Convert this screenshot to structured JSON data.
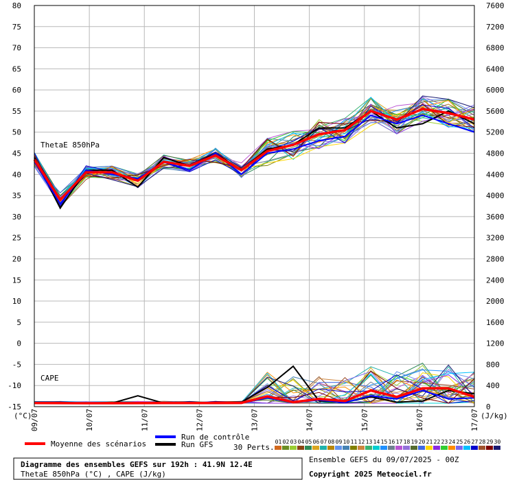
{
  "chart_data": {
    "type": "line",
    "title": "Diagramme des ensembles GEFS sur 192h : 41.9N 12.4E",
    "subtitle": "ThetaE 850hPa (°C) , CAPE (J/kg)",
    "left_axis_unit": "(°C)",
    "right_axis_unit": "(J/kg)",
    "left_ticks": [
      "80",
      "75",
      "70",
      "65",
      "60",
      "55",
      "50",
      "45",
      "40",
      "35",
      "30",
      "25",
      "20",
      "15",
      "10",
      "5",
      "0",
      "-5",
      "-10",
      "-15"
    ],
    "right_ticks": [
      "7600",
      "7200",
      "6800",
      "6400",
      "6000",
      "5600",
      "5200",
      "4800",
      "4400",
      "4000",
      "3600",
      "3200",
      "2800",
      "2400",
      "2000",
      "1600",
      "1200",
      "800",
      "400",
      "0"
    ],
    "x_labels": [
      "09/07",
      "10/07",
      "11/07",
      "12/07",
      "13/07",
      "14/07",
      "15/07",
      "16/07",
      "17/07"
    ],
    "ylim_theta": [
      -15,
      80
    ],
    "ylim_cape": [
      0,
      7600
    ],
    "grid": true,
    "panel_labels": {
      "theta": "ThetaE 850hPa",
      "cape": "CAPE"
    },
    "series": [
      {
        "name": "Moyenne des scénarios",
        "color": "#ff0000",
        "theta": [
          43.5,
          34,
          40.5,
          40.5,
          38.5,
          43,
          42,
          44.5,
          41,
          45.5,
          47,
          49.5,
          50.5,
          55,
          53,
          55.5,
          54.5,
          53
        ],
        "cape": [
          2,
          1,
          0,
          0,
          1,
          2,
          3,
          3,
          5,
          130,
          20,
          80,
          40,
          240,
          120,
          280,
          280,
          120
        ]
      },
      {
        "name": "Run de contrôle",
        "color": "#0000ff",
        "theta": [
          43,
          33,
          41,
          40,
          39,
          43,
          41,
          45,
          40,
          45,
          46,
          48,
          49,
          54,
          52,
          54,
          52,
          50
        ],
        "cape": [
          1,
          0,
          0,
          0,
          0,
          1,
          2,
          1,
          4,
          100,
          10,
          60,
          10,
          140,
          80,
          240,
          80,
          100
        ]
      },
      {
        "name": "Run GFS",
        "color": "#000000",
        "theta": [
          44,
          32,
          41,
          41,
          37,
          44,
          42,
          45,
          41,
          46,
          47,
          51,
          51,
          55,
          51,
          52,
          55,
          52
        ],
        "cape": [
          1,
          0,
          0,
          0,
          140,
          1,
          2,
          1,
          20,
          300,
          700,
          40,
          20,
          120,
          20,
          40,
          240,
          180
        ]
      }
    ],
    "legend": {
      "members_label": "30 Perts.",
      "members": [
        "01",
        "02",
        "03",
        "04",
        "05",
        "06",
        "07",
        "08",
        "09",
        "10",
        "11",
        "12",
        "13",
        "14",
        "15",
        "16",
        "17",
        "18",
        "19",
        "20",
        "21",
        "22",
        "23",
        "24",
        "25",
        "26",
        "27",
        "28",
        "29",
        "30"
      ],
      "member_colors": [
        "#d2691e",
        "#6b8e23",
        "#9acd32",
        "#8b4513",
        "#2e8b57",
        "#daa520",
        "#20b2aa",
        "#b8860b",
        "#6495ed",
        "#4682b4",
        "#808000",
        "#cd853f",
        "#3cb371",
        "#00ced1",
        "#1e90ff",
        "#708090",
        "#ba55d3",
        "#9370db",
        "#556b2f",
        "#4169e1",
        "#ffd700",
        "#8a2be2",
        "#32cd32",
        "#ff8c00",
        "#7b68ee",
        "#00bfff",
        "#0000cd",
        "#a0522d",
        "#800000",
        "#191970"
      ]
    }
  },
  "footer": {
    "info_line": "Ensemble GEFS du 09/07/2025 - 00Z",
    "copyright": "Copyright 2025 Meteociel.fr"
  }
}
